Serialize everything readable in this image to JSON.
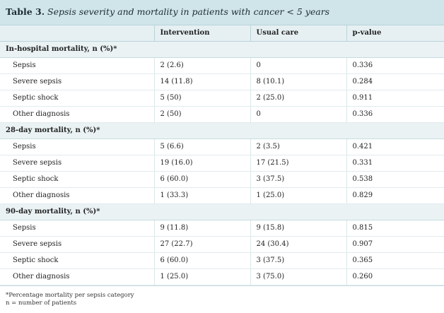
{
  "caption": {
    "label": "Table 3.",
    "title": "Sepsis severity and mortality in patients with cancer < 5 years"
  },
  "columns": [
    "",
    "Intervention",
    "Usual care",
    "p-value"
  ],
  "sections": [
    {
      "title": "In-hospital mortality, n (%)*",
      "rows": [
        {
          "diagnosis": "Sepsis",
          "intervention": "2 (2.6)",
          "usual_care": "0",
          "p_value": "0.336"
        },
        {
          "diagnosis": "Severe sepsis",
          "intervention": "14 (11.8)",
          "usual_care": "8 (10.1)",
          "p_value": "0.284"
        },
        {
          "diagnosis": "Septic shock",
          "intervention": "5 (50)",
          "usual_care": "2 (25.0)",
          "p_value": "0.911"
        },
        {
          "diagnosis": "Other diagnosis",
          "intervention": "2 (50)",
          "usual_care": "0",
          "p_value": "0.336"
        }
      ]
    },
    {
      "title": "28-day mortality, n (%)*",
      "rows": [
        {
          "diagnosis": "Sepsis",
          "intervention": "5 (6.6)",
          "usual_care": "2 (3.5)",
          "p_value": "0.421"
        },
        {
          "diagnosis": "Severe sepsis",
          "intervention": "19 (16.0)",
          "usual_care": "17 (21.5)",
          "p_value": "0.331"
        },
        {
          "diagnosis": "Septic shock",
          "intervention": "6 (60.0)",
          "usual_care": "3 (37.5)",
          "p_value": "0.538"
        },
        {
          "diagnosis": "Other diagnosis",
          "intervention": "1 (33.3)",
          "usual_care": "1 (25.0)",
          "p_value": "0.829"
        }
      ]
    },
    {
      "title": "90-day mortality, n (%)*",
      "rows": [
        {
          "diagnosis": "Sepsis",
          "intervention": "9 (11.8)",
          "usual_care": "9 (15.8)",
          "p_value": "0.815"
        },
        {
          "diagnosis": "Severe sepsis",
          "intervention": "27 (22.7)",
          "usual_care": "24 (30.4)",
          "p_value": "0.907"
        },
        {
          "diagnosis": "Septic shock",
          "intervention": "6 (60.0)",
          "usual_care": "3 (37.5)",
          "p_value": "0.365"
        },
        {
          "diagnosis": "Other diagnosis",
          "intervention": "1 (25.0)",
          "usual_care": "3 (75.0)",
          "p_value": "0.260"
        }
      ]
    }
  ],
  "footnotes": [
    "*Percentage mortality per sepsis category",
    "n = number of patients"
  ]
}
